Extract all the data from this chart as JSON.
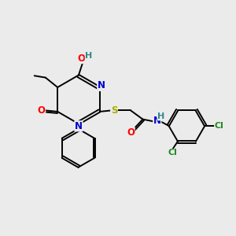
{
  "background_color": "#ebebeb",
  "atom_colors": {
    "N": "#0000cc",
    "O": "#ff0000",
    "S": "#aaaa00",
    "Cl": "#228B22",
    "H": "#2e8b8b",
    "C": "#000000"
  },
  "font_size": 8.5,
  "line_width": 1.4
}
